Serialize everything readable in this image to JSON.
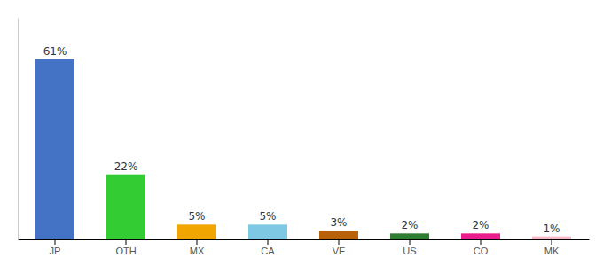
{
  "chart_data": {
    "type": "bar",
    "categories": [
      "JP",
      "OTH",
      "MX",
      "CA",
      "VE",
      "US",
      "CO",
      "MK"
    ],
    "values": [
      61,
      22,
      5,
      5,
      3,
      2,
      2,
      1
    ],
    "value_labels": [
      "61%",
      "22%",
      "5%",
      "5%",
      "3%",
      "2%",
      "2%",
      "1%"
    ],
    "colors": [
      "#4472c4",
      "#33cc33",
      "#f0a500",
      "#7ec8e3",
      "#b8600a",
      "#2e7d32",
      "#e91e8c",
      "#f8b8c8"
    ],
    "ylim": [
      0,
      75
    ],
    "data_labels": true,
    "tick_labels": "x",
    "grid": false
  }
}
